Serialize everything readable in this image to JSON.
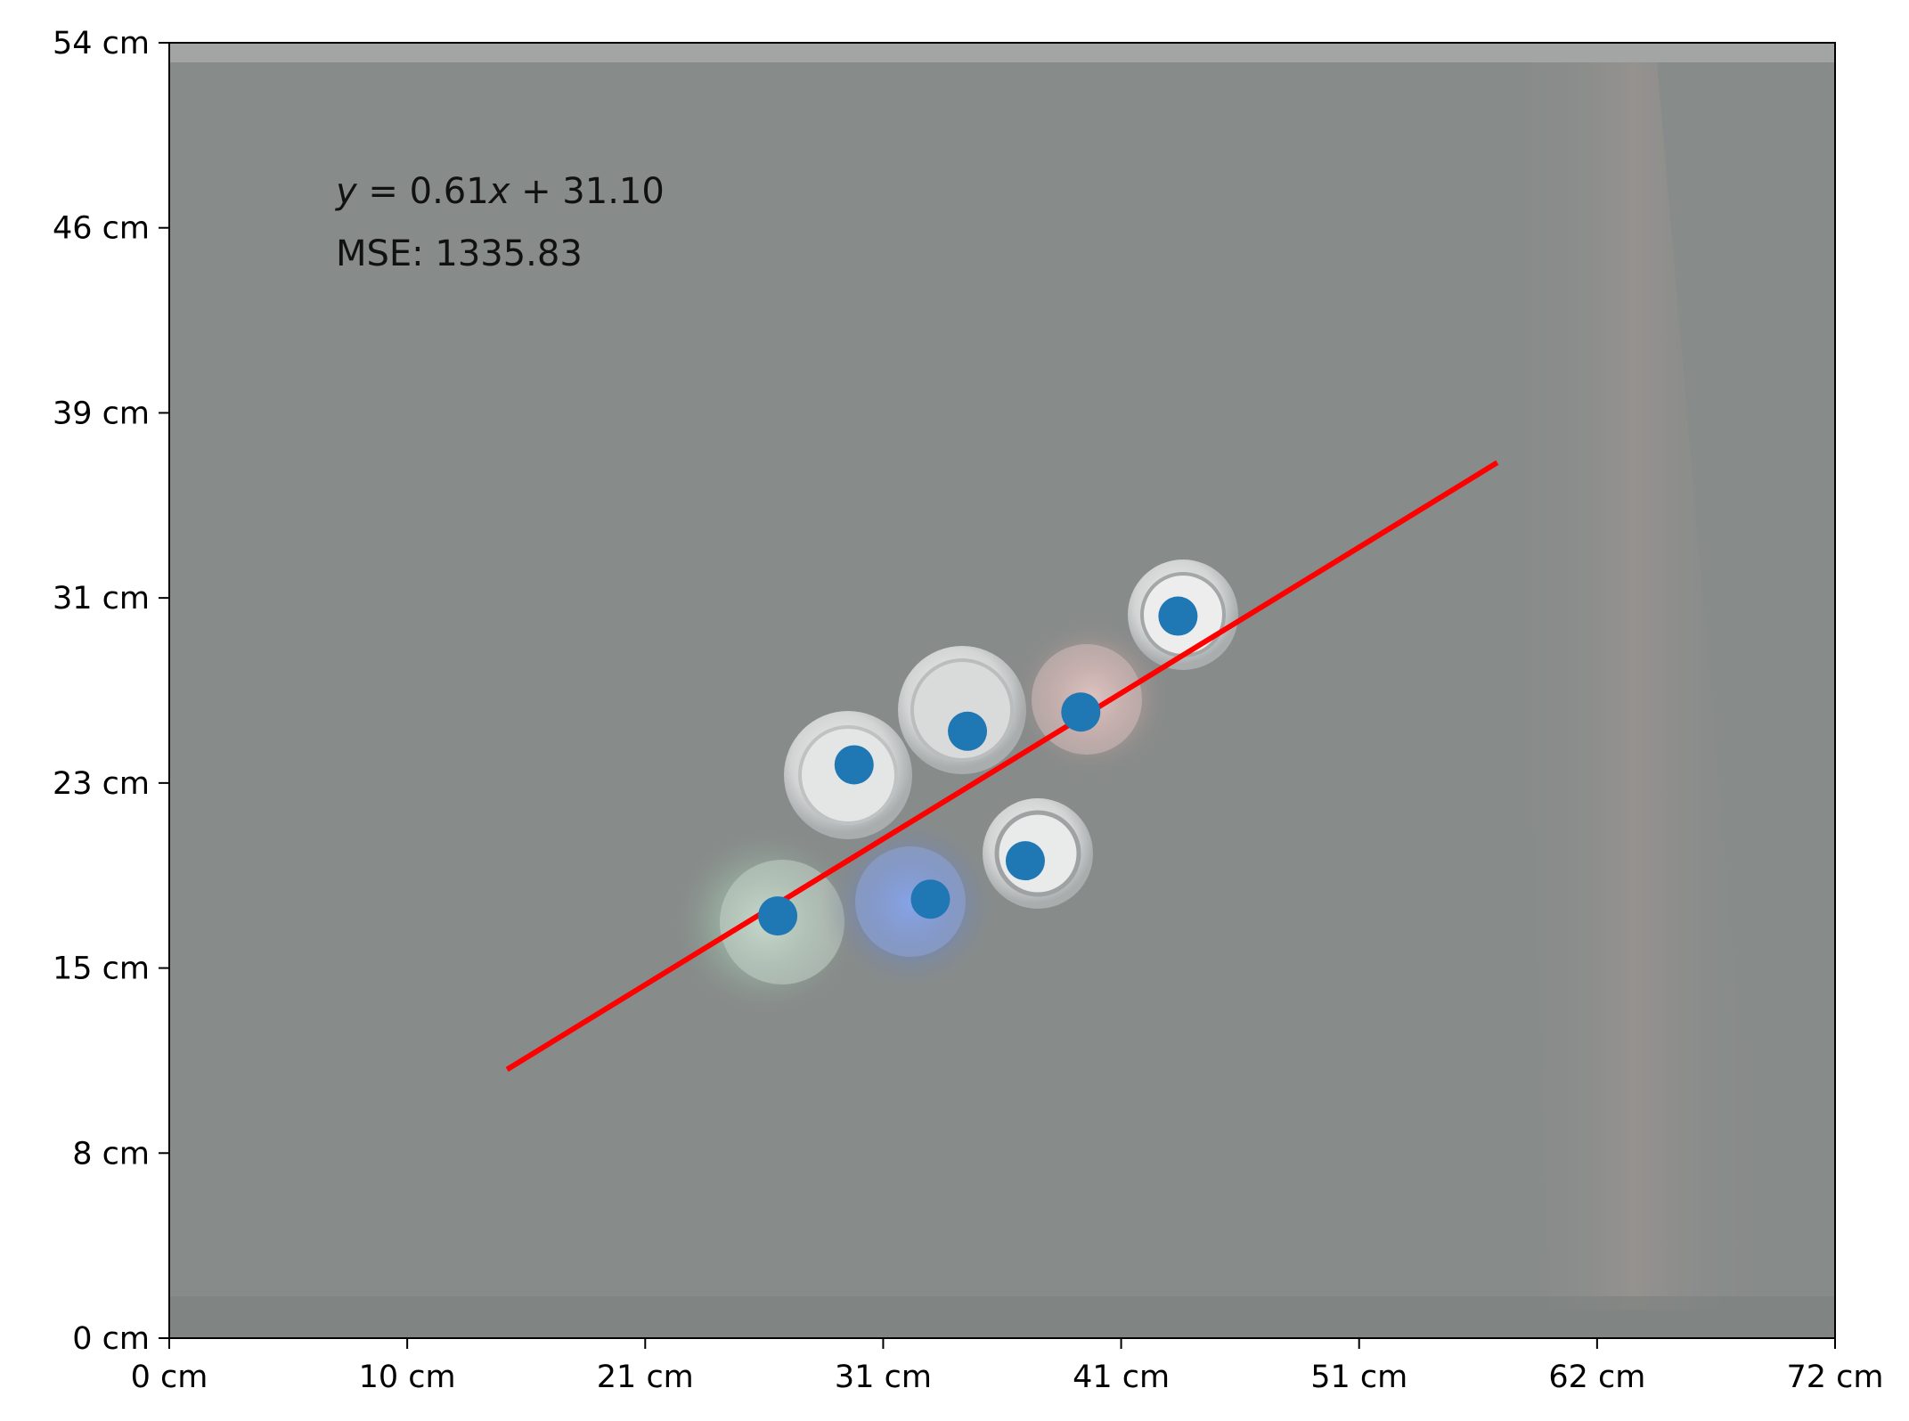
{
  "chart_data": {
    "type": "scatter",
    "title": "",
    "xlabel": "",
    "ylabel": "",
    "xlim": [
      0,
      72
    ],
    "ylim": [
      0,
      54
    ],
    "x_tick_labels": [
      "0 cm",
      "10 cm",
      "21 cm",
      "31 cm",
      "41 cm",
      "51 cm",
      "62 cm",
      "72 cm"
    ],
    "y_tick_labels": [
      "0 cm",
      "8 cm",
      "15 cm",
      "23 cm",
      "31 cm",
      "39 cm",
      "46 cm",
      "54 cm"
    ],
    "grid": false,
    "background": "photo of spherical robots on a gray floor",
    "points": [
      {
        "x": 26.3,
        "y": 17.6
      },
      {
        "x": 29.6,
        "y": 23.9
      },
      {
        "x": 32.9,
        "y": 18.3
      },
      {
        "x": 34.5,
        "y": 25.3
      },
      {
        "x": 37.0,
        "y": 19.9
      },
      {
        "x": 39.4,
        "y": 26.1
      },
      {
        "x": 43.6,
        "y": 30.1
      }
    ],
    "fit_line": {
      "x_start": 14.6,
      "x_end": 57.4,
      "y_start": 11.2,
      "y_end": 36.5
    },
    "annotations": {
      "equation_prefix": "y",
      "equation_rest": " = 0.61",
      "equation_var": "x",
      "equation_suffix": " + 31.10",
      "mse": "MSE: 1335.83"
    },
    "colors": {
      "points": "#1f77b4",
      "fit_line": "#ff0000",
      "background": "#878b8a"
    }
  }
}
